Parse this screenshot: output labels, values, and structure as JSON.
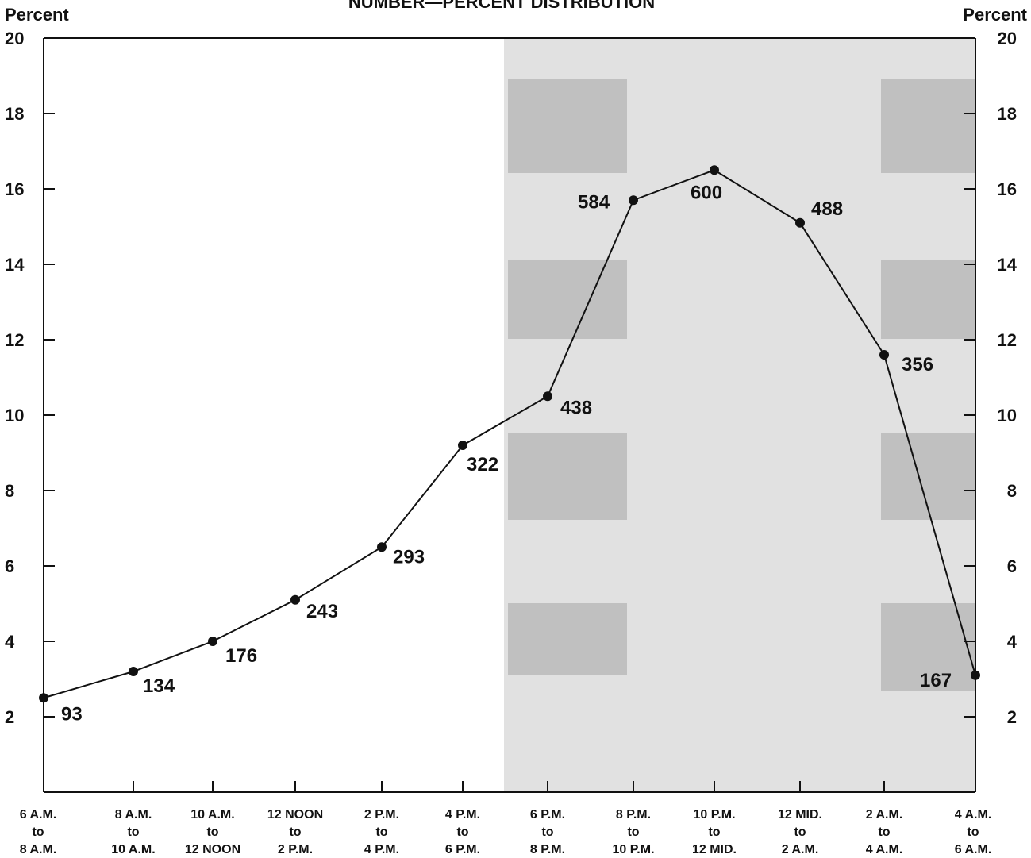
{
  "chart_data": {
    "type": "line",
    "title": "NUMBER—PERCENT  DISTRIBUTION",
    "left_axis_label": "Percent",
    "right_axis_label": "Percent",
    "ylim": [
      0,
      20
    ],
    "y_ticks": [
      "2",
      "4",
      "6",
      "8",
      "10",
      "12",
      "14",
      "16",
      "18",
      "20"
    ],
    "grid": false,
    "shaded_region": {
      "from_category": "6 P.M. to 8 P.M. (left half)",
      "to_category": "4 A.M. to 6 A.M.",
      "color": "#c8c8c8"
    },
    "categories": [
      {
        "line1": "6 A.M.",
        "line2": "to",
        "line3": "8 A.M."
      },
      {
        "line1": "8 A.M.",
        "line2": "to",
        "line3": "10 A.M."
      },
      {
        "line1": "10 A.M.",
        "line2": "to",
        "line3": "12 NOON"
      },
      {
        "line1": "12 NOON",
        "line2": "to",
        "line3": "2 P.M."
      },
      {
        "line1": "2 P.M.",
        "line2": "to",
        "line3": "4 P.M."
      },
      {
        "line1": "4 P.M.",
        "line2": "to",
        "line3": "6 P.M."
      },
      {
        "line1": "6 P.M.",
        "line2": "to",
        "line3": "8 P.M."
      },
      {
        "line1": "8 P.M.",
        "line2": "to",
        "line3": "10 P.M."
      },
      {
        "line1": "10 P.M.",
        "line2": "to",
        "line3": "12 MID."
      },
      {
        "line1": "12 MID.",
        "line2": "to",
        "line3": "2 A.M."
      },
      {
        "line1": "2 A.M.",
        "line2": "to",
        "line3": "4 A.M."
      },
      {
        "line1": "4 A.M.",
        "line2": "to",
        "line3": "6 A.M."
      }
    ],
    "series": [
      {
        "percent": [
          2.5,
          3.2,
          4.0,
          5.1,
          6.5,
          9.2,
          10.5,
          15.7,
          16.5,
          15.1,
          11.6,
          3.1
        ],
        "counts": [
          "93",
          "134",
          "176",
          "243",
          "293",
          "322",
          "438",
          "584",
          "600",
          "488",
          "356",
          "167"
        ]
      }
    ]
  },
  "colors": {
    "line": "#111111",
    "shade": "#c8c8c8",
    "shade_dark": "#aaaaaa"
  }
}
